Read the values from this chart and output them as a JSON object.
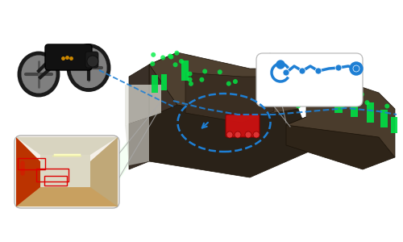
{
  "bg_color": "#ffffff",
  "fig_width": 5.0,
  "fig_height": 3.0,
  "dpi": 100,
  "blue_color": "#1e7fd4",
  "green_color": "#00dd44",
  "red_color": "#cc1111",
  "panel_border": "#bbbbbb",
  "drone_dark": "#111111",
  "bld_dark": "#3a2e22",
  "bld_mid": "#4e4030",
  "bld_light": "#5e5040",
  "bld_floor": "#2a2218",
  "corridor_door": "#bb3300",
  "corridor_floor": "#c8a060",
  "corridor_ceil": "#d8d0c0",
  "corridor_center": "#dcd4be",
  "corridor_right": "#c0a880"
}
